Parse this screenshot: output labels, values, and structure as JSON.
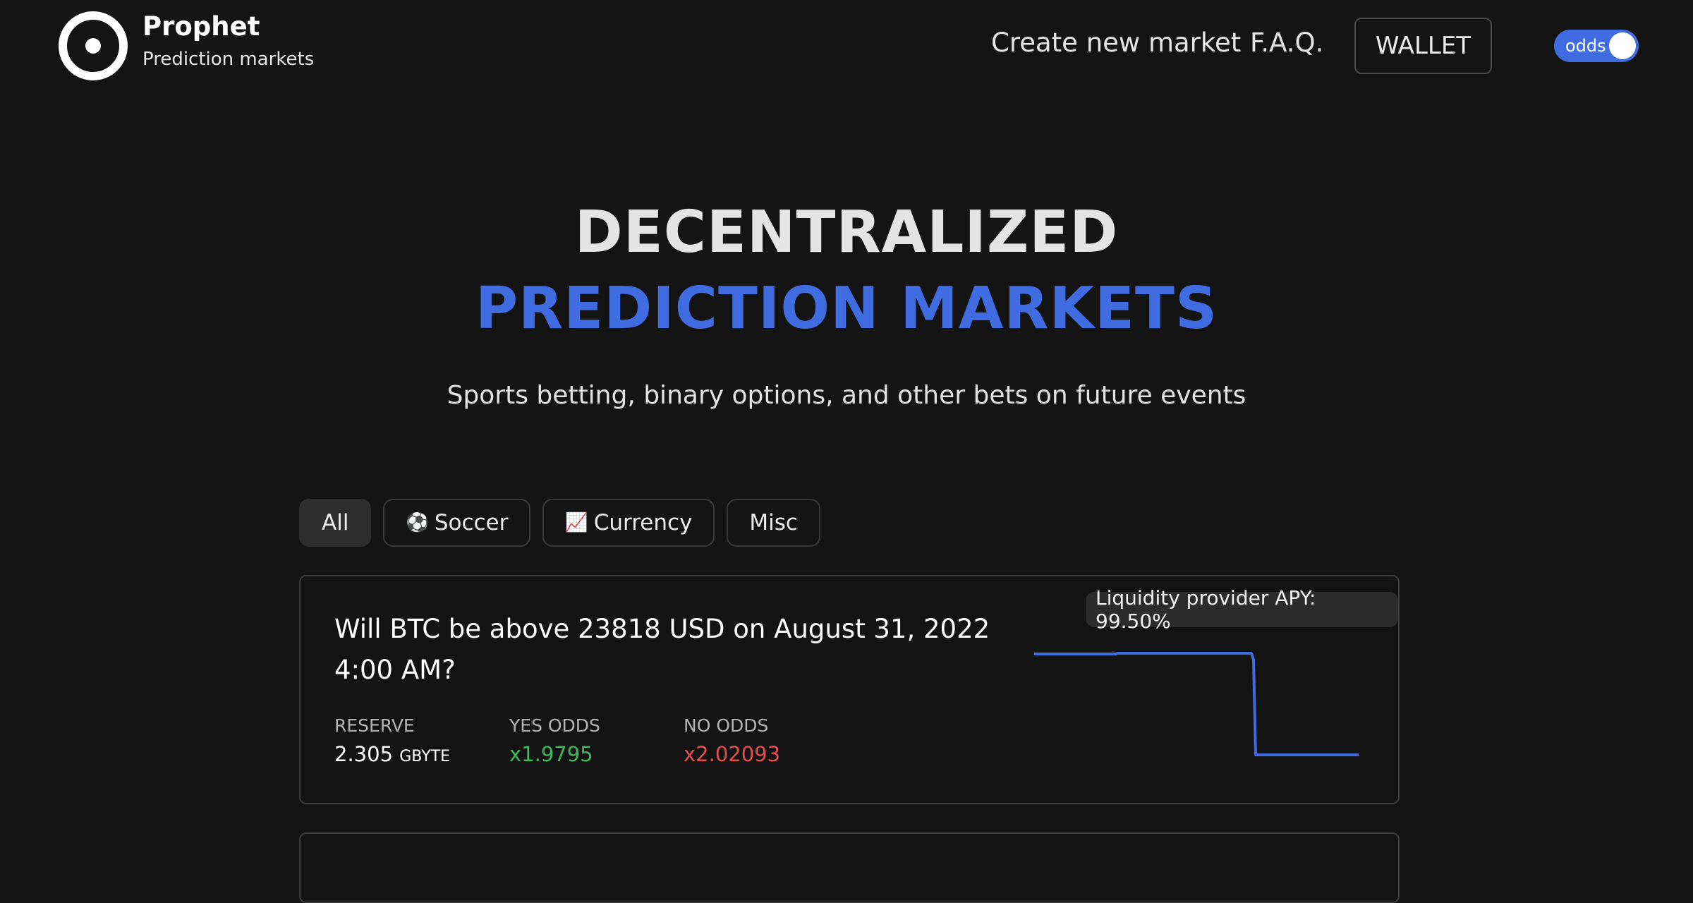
{
  "header": {
    "brand_title": "Prophet",
    "brand_subtitle": "Prediction markets",
    "nav": {
      "create_label": "Create new market",
      "faq_label": "F.A.Q.",
      "wallet_label": "WALLET"
    },
    "toggle": {
      "label": "odds",
      "on": true,
      "color": "#3f6ce1"
    }
  },
  "hero": {
    "line1": "DECENTRALIZED",
    "line2": "PREDICTION MARKETS",
    "subtitle": "Sports betting, binary options, and other bets on future events"
  },
  "filters": [
    {
      "label": "All",
      "icon": "",
      "active": true
    },
    {
      "label": "Soccer",
      "icon": "⚽",
      "active": false
    },
    {
      "label": "Currency",
      "icon": "📈",
      "active": false
    },
    {
      "label": "Misc",
      "icon": "",
      "active": false
    }
  ],
  "markets": [
    {
      "title": "Will BTC be above 23818 USD on August 31, 2022 4:00 AM?",
      "apy_text": "Liquidity provider APY: 99.50%",
      "reserve_label": "RESERVE",
      "reserve_value": "2.305",
      "reserve_unit": "GBYTE",
      "yes_label": "YES ODDS",
      "yes_value": "x1.9795",
      "no_label": "NO ODDS",
      "no_value": "x2.02093"
    }
  ],
  "colors": {
    "accent": "#3f6ce1",
    "yes": "#3cb95a",
    "no": "#e24f4f",
    "background": "#141414"
  }
}
